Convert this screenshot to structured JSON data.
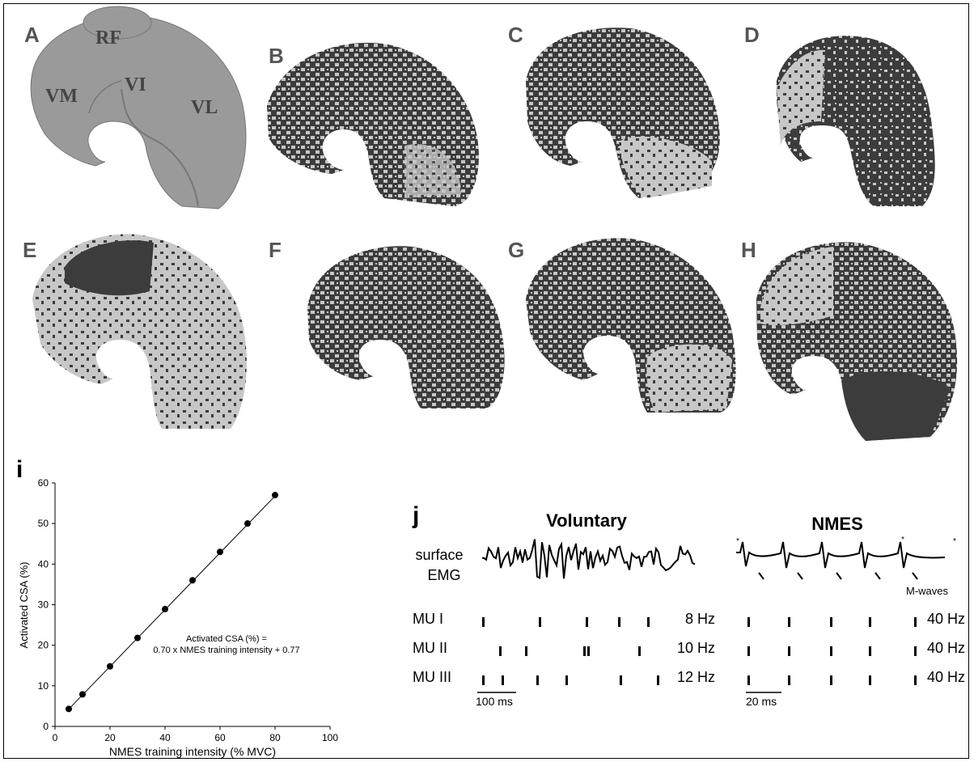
{
  "panels_mri": [
    {
      "id": "A",
      "kind": "anatomy",
      "muscles": [
        "RF",
        "VM",
        "VI",
        "VL"
      ]
    },
    {
      "id": "B",
      "kind": "activation"
    },
    {
      "id": "C",
      "kind": "activation"
    },
    {
      "id": "D",
      "kind": "activation"
    },
    {
      "id": "E",
      "kind": "activation"
    },
    {
      "id": "F",
      "kind": "activation"
    },
    {
      "id": "G",
      "kind": "activation"
    },
    {
      "id": "H",
      "kind": "activation"
    }
  ],
  "colors": {
    "anatomy": "#9a9a9a",
    "dark": "#3c3c3c",
    "light": "#c7c7c7",
    "line": "#000000"
  },
  "panel_i": {
    "label": "i",
    "chart_data": {
      "type": "scatter",
      "xlabel": "NMES training intensity (% MVC)",
      "ylabel": "Activated CSA (%)",
      "xlim": [
        0,
        100
      ],
      "ylim": [
        0,
        60
      ],
      "xticks": [
        0,
        20,
        40,
        60,
        80,
        100
      ],
      "yticks": [
        0,
        10,
        20,
        30,
        40,
        50,
        60
      ],
      "x": [
        5,
        10,
        20,
        30,
        40,
        50,
        60,
        70,
        80
      ],
      "y": [
        4.3,
        7.9,
        14.8,
        21.8,
        28.9,
        36,
        43,
        50,
        57
      ],
      "fit": {
        "slope": 0.7,
        "intercept": 0.77
      },
      "equation_line1": "Activated CSA (%) =",
      "equation_line2": "0.70 x NMES training intensity + 0.77"
    }
  },
  "panel_j": {
    "label": "j",
    "voluntary_title": "Voluntary",
    "nmes_title": "NMES",
    "emg_label_1": "surface",
    "emg_label_2": "EMG",
    "mwaves": "M-waves",
    "rows": [
      {
        "name": "MU I",
        "vol_rate": "8 Hz",
        "nmes_rate": "40 Hz"
      },
      {
        "name": "MU II",
        "vol_rate": "10 Hz",
        "nmes_rate": "40 Hz"
      },
      {
        "name": "MU III",
        "vol_rate": "12 Hz",
        "nmes_rate": "40 Hz"
      }
    ],
    "scale_vol": "100 ms",
    "scale_nmes": "20 ms"
  }
}
